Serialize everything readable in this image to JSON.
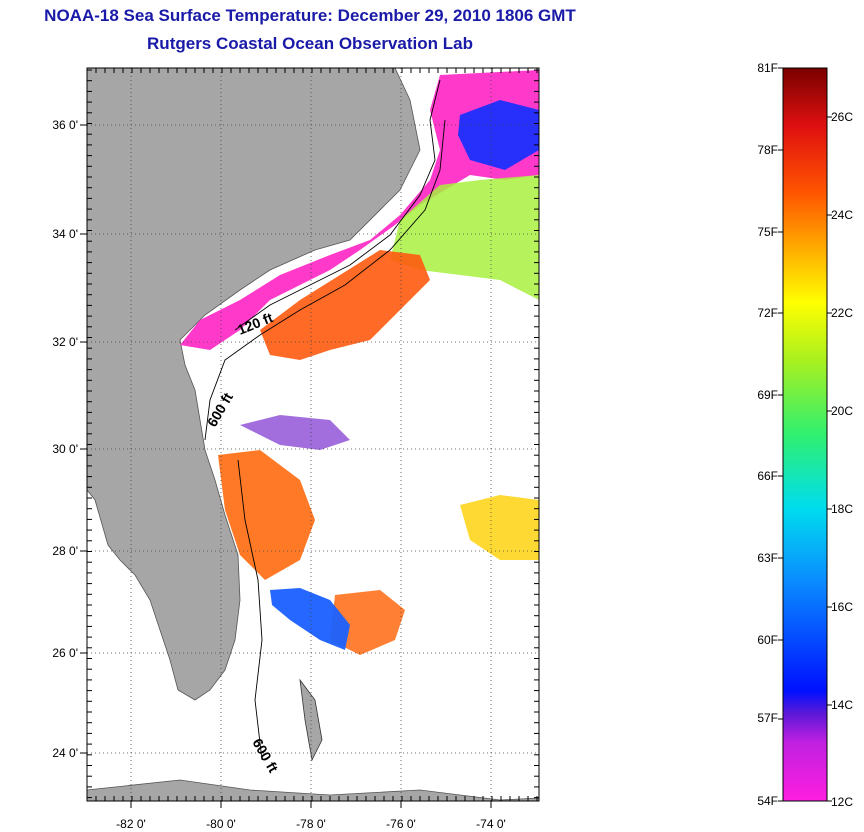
{
  "title": "NOAA-18 Sea Surface Temperature:  December 29, 2010 1806 GMT",
  "subtitle": "Rutgers Coastal Ocean Observation Lab",
  "map": {
    "lat_ticks": [
      {
        "label": "36 0'",
        "value": 36
      },
      {
        "label": "34 0'",
        "value": 34
      },
      {
        "label": "32 0'",
        "value": 32
      },
      {
        "label": "30 0'",
        "value": 30
      },
      {
        "label": "28 0'",
        "value": 28
      },
      {
        "label": "26 0'",
        "value": 26
      },
      {
        "label": "24 0'",
        "value": 24
      }
    ],
    "lon_ticks": [
      {
        "label": "-82 0'",
        "value": -82
      },
      {
        "label": "-80 0'",
        "value": -80
      },
      {
        "label": "-78 0'",
        "value": -78
      },
      {
        "label": "-76 0'",
        "value": -76
      },
      {
        "label": "-74 0'",
        "value": -74
      }
    ],
    "lat_range": [
      23.0,
      37.1
    ],
    "lon_range": [
      -83.0,
      -73.0
    ],
    "depth_labels": [
      "120 ft",
      "600 ft",
      "600 ft"
    ],
    "colors": {
      "land": "#a6a6a6",
      "water": "#ffffff",
      "grid": "#444444"
    }
  },
  "colorbar": {
    "fahrenheit": [
      "81F",
      "78F",
      "75F",
      "72F",
      "69F",
      "66F",
      "63F",
      "60F",
      "57F",
      "54F"
    ],
    "celsius": [
      "26C",
      "24C",
      "22C",
      "20C",
      "18C",
      "16C",
      "14C",
      "12C"
    ]
  }
}
